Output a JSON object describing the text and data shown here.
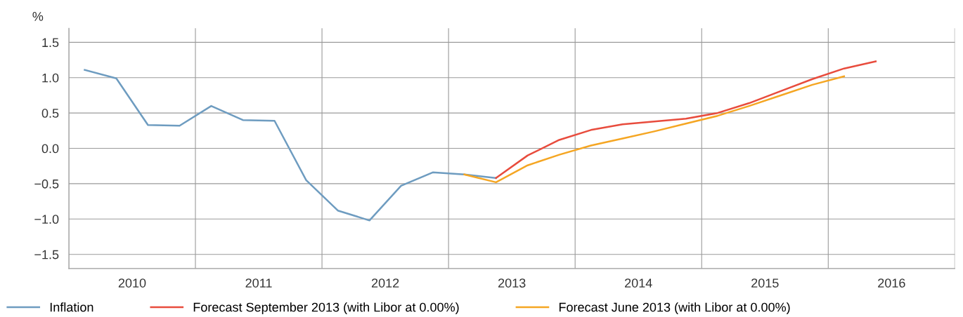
{
  "chart_data": {
    "type": "line",
    "ylabel": "%",
    "x": [
      2010.125,
      2010.375,
      2010.625,
      2010.875,
      2011.125,
      2011.375,
      2011.625,
      2011.875,
      2012.125,
      2012.375,
      2012.625,
      2012.875,
      2013.125,
      2013.375
    ],
    "series": [
      {
        "name": "Inflation",
        "color": "#6e9cc0",
        "values": [
          1.11,
          0.99,
          0.33,
          0.32,
          0.6,
          0.4,
          0.39,
          -0.45,
          -0.88,
          -1.02,
          -0.53,
          -0.34,
          -0.37,
          -0.42
        ]
      },
      {
        "name": "Forecast September 2013 (with Libor at 0.00%)",
        "color": "#e84c3d",
        "x": [
          2013.375,
          2013.625,
          2013.875,
          2014.125,
          2014.375,
          2014.625,
          2014.875,
          2015.125,
          2015.375,
          2015.625,
          2015.875,
          2016.125,
          2016.375
        ],
        "values": [
          -0.42,
          -0.1,
          0.12,
          0.26,
          0.34,
          0.38,
          0.42,
          0.5,
          0.64,
          0.81,
          0.98,
          1.13,
          1.23
        ]
      },
      {
        "name": "Forecast June 2013 (with Libor at 0.00%)",
        "color": "#f5a623",
        "x": [
          2013.125,
          2013.375,
          2013.625,
          2013.875,
          2014.125,
          2014.375,
          2014.625,
          2014.875,
          2015.125,
          2015.375,
          2015.625,
          2015.875,
          2016.125
        ],
        "values": [
          -0.37,
          -0.48,
          -0.24,
          -0.09,
          0.04,
          0.14,
          0.24,
          0.35,
          0.46,
          0.6,
          0.75,
          0.9,
          1.02
        ]
      }
    ],
    "xlim": [
      2010,
      2017
    ],
    "xticks": [
      {
        "value": 2010,
        "label": null
      },
      {
        "value": 2010.5,
        "label": "2010"
      },
      {
        "value": 2011,
        "label": null
      },
      {
        "value": 2011.5,
        "label": "2011"
      },
      {
        "value": 2012,
        "label": null
      },
      {
        "value": 2012.5,
        "label": "2012"
      },
      {
        "value": 2013,
        "label": null
      },
      {
        "value": 2013.5,
        "label": "2013"
      },
      {
        "value": 2014,
        "label": null
      },
      {
        "value": 2014.5,
        "label": "2014"
      },
      {
        "value": 2015,
        "label": null
      },
      {
        "value": 2015.5,
        "label": "2015"
      },
      {
        "value": 2016,
        "label": null
      },
      {
        "value": 2016.5,
        "label": "2016"
      },
      {
        "value": 2017,
        "label": null
      }
    ],
    "ylim": [
      -1.7,
      1.7
    ],
    "yticks": [
      {
        "value": -1.5,
        "label": "−1.5"
      },
      {
        "value": -1.0,
        "label": "−1.0"
      },
      {
        "value": -0.5,
        "label": "−0.5"
      },
      {
        "value": 0,
        "label": "0.0"
      },
      {
        "value": 0.5,
        "label": "0.5"
      },
      {
        "value": 1.0,
        "label": "1.0"
      },
      {
        "value": 1.5,
        "label": "1.5"
      }
    ],
    "grid": true,
    "legend": "bottom",
    "line_style": "solid",
    "marker": "none"
  }
}
